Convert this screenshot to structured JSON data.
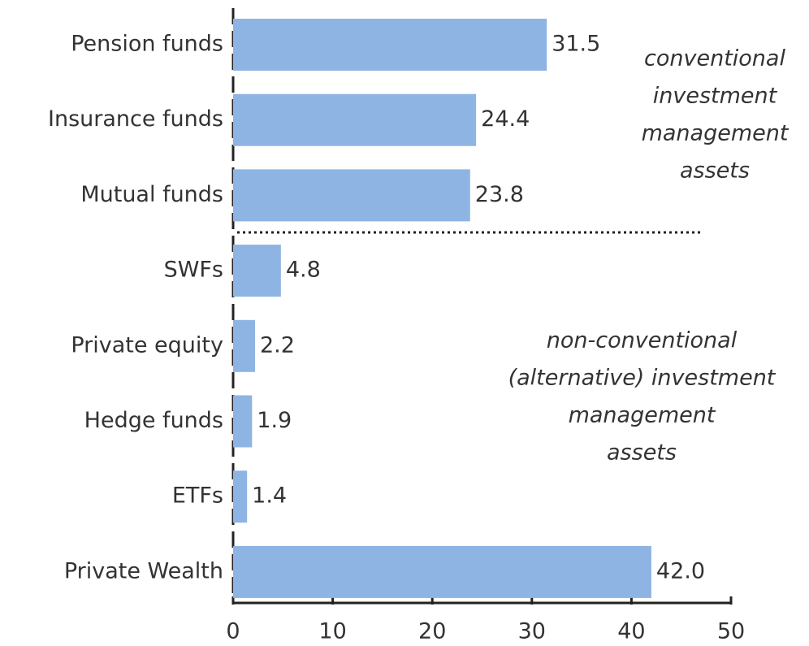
{
  "chart_data": {
    "type": "bar",
    "orientation": "horizontal",
    "categories": [
      "Pension funds",
      "Insurance funds",
      "Mutual funds",
      "SWFs",
      "Private equity",
      "Hedge funds",
      "ETFs",
      "Private Wealth"
    ],
    "values": [
      31.5,
      24.4,
      23.8,
      4.8,
      2.2,
      1.9,
      1.4,
      42.0
    ],
    "value_labels": [
      "31.5",
      "24.4",
      "23.8",
      "4.8",
      "2.2",
      "1.9",
      "1.4",
      "42.0"
    ],
    "color": "#8eb4e3",
    "xlim": [
      0,
      50
    ],
    "xticks": [
      0,
      10,
      20,
      30,
      40,
      50
    ],
    "annotations": [
      {
        "lines": [
          "conventional",
          "investment",
          "management",
          "assets"
        ]
      },
      {
        "lines": [
          "non-conventional",
          "(alternative) investment",
          "management",
          "assets"
        ]
      }
    ]
  }
}
